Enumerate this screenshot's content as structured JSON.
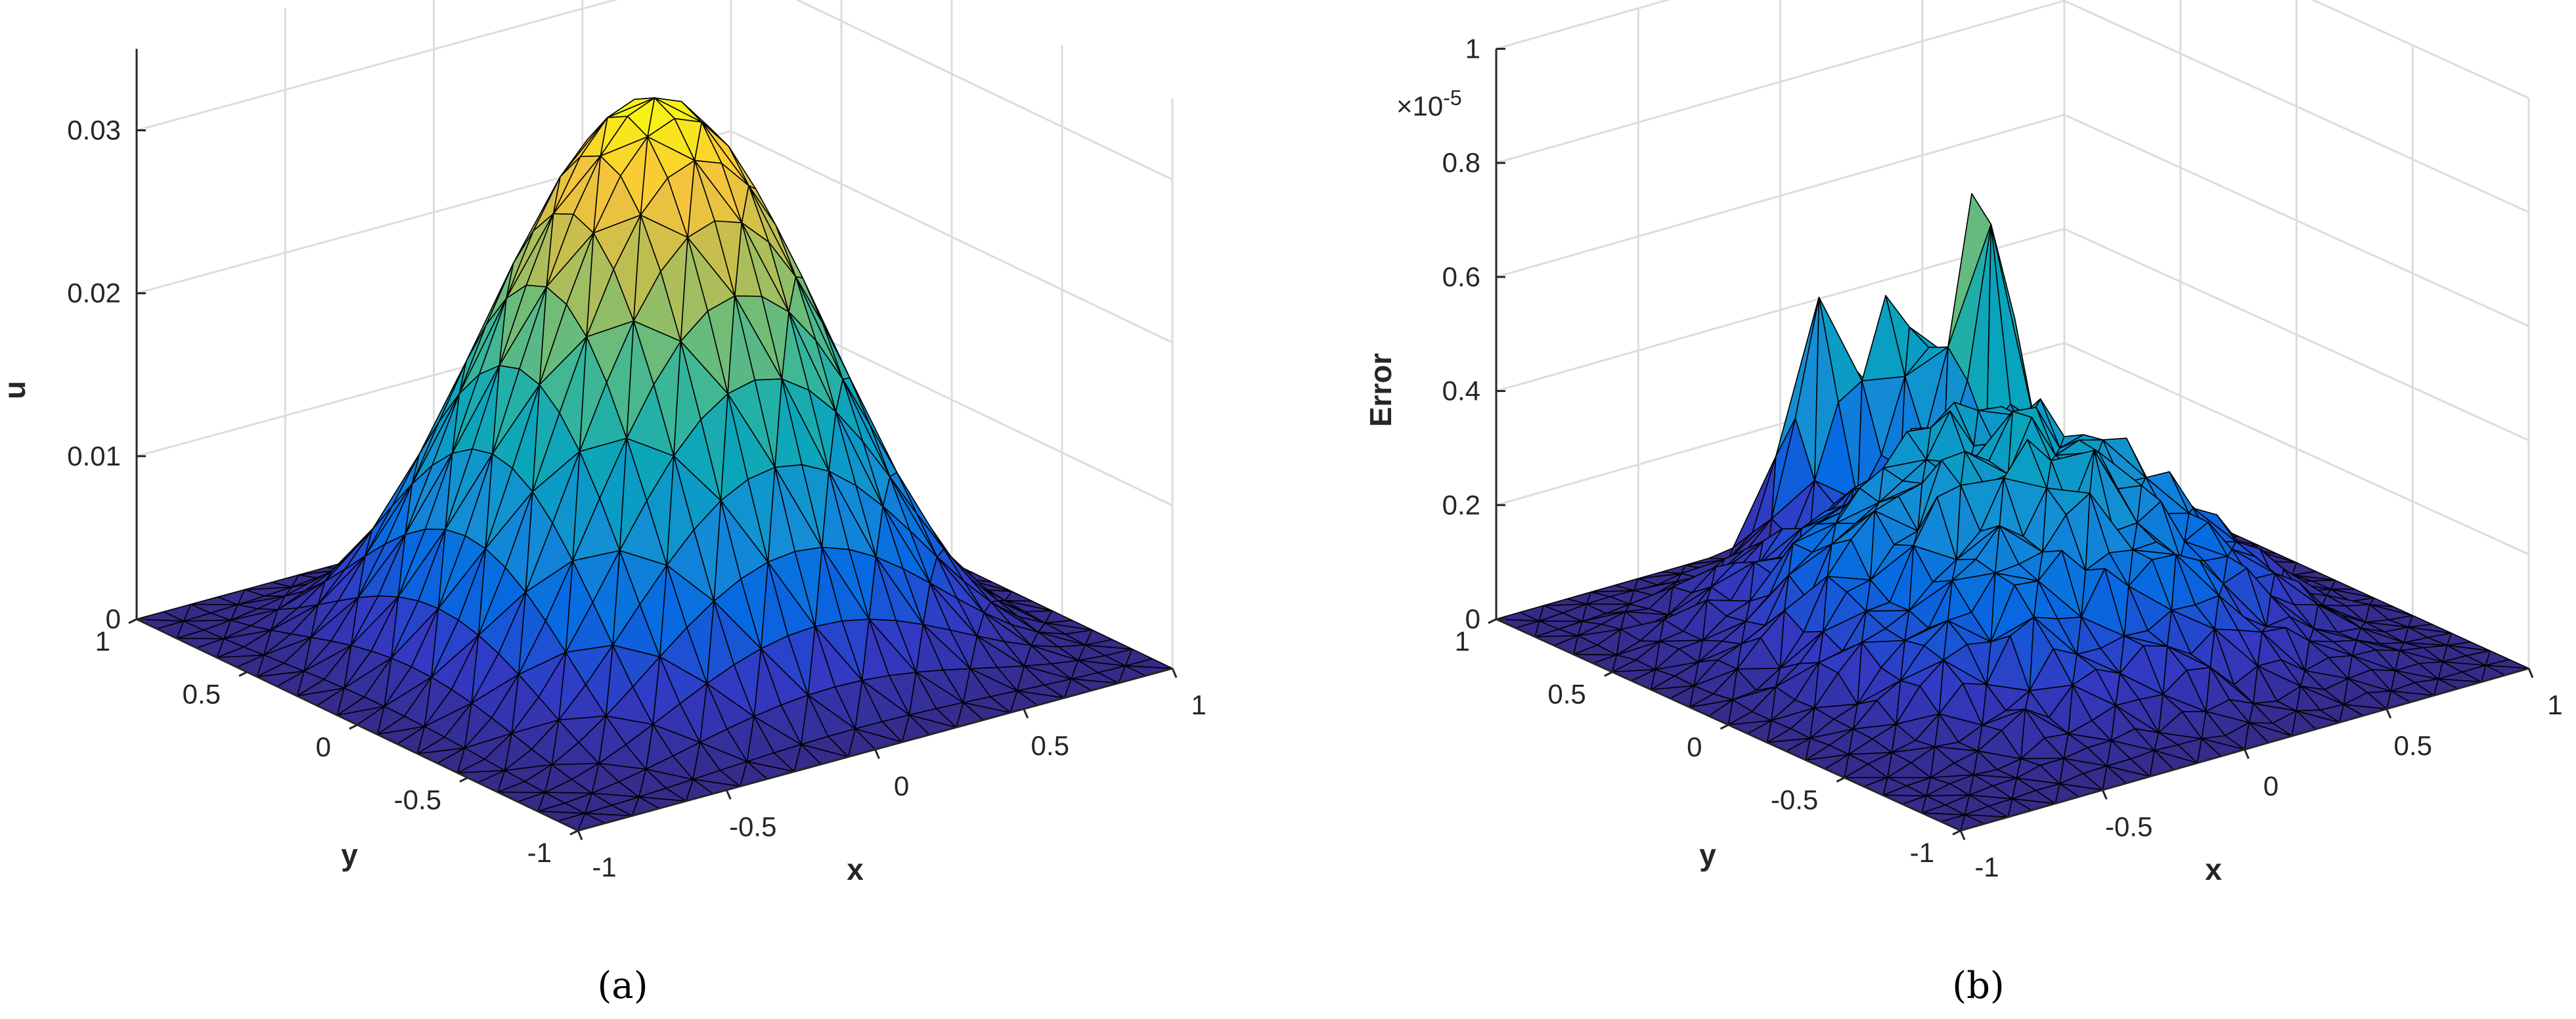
{
  "chart_data": [
    {
      "type": "surface",
      "panel_label": "(a)",
      "xlabel": "x",
      "ylabel": "y",
      "zlabel": "u",
      "xlim": [
        -1,
        1
      ],
      "ylim": [
        -1,
        1
      ],
      "zlim": [
        0,
        0.035
      ],
      "x_ticks": [
        "-1",
        "-0.5",
        "0",
        "0.5",
        "1"
      ],
      "y_ticks": [
        "-1",
        "-0.5",
        "0",
        "0.5",
        "1"
      ],
      "z_ticks": [
        "0",
        "0.01",
        "0.02",
        "0.03"
      ],
      "z_tick_values": [
        0,
        0.01,
        0.02,
        0.03
      ],
      "z_max": 0.0335,
      "grid": true,
      "colormap": "parula",
      "mesh": "triangular",
      "surface_description": "smooth bump peaking at the centre of the square domain"
    },
    {
      "type": "surface",
      "panel_label": "(b)",
      "xlabel": "x",
      "ylabel": "y",
      "zlabel": "Error",
      "z_multiplier": "×10",
      "z_multiplier_exponent": "-5",
      "xlim": [
        -1,
        1
      ],
      "ylim": [
        -1,
        1
      ],
      "zlim": [
        0,
        1
      ],
      "x_ticks": [
        "-1",
        "-0.5",
        "0",
        "0.5",
        "1"
      ],
      "y_ticks": [
        "-1",
        "-0.5",
        "0",
        "0.5",
        "1"
      ],
      "z_ticks": [
        "0",
        "0.2",
        "0.4",
        "0.6",
        "0.8",
        "1"
      ],
      "z_tick_values": [
        0,
        0.2,
        0.4,
        0.6,
        0.8,
        1
      ],
      "z_max": 0.85,
      "peaks": [
        {
          "x": 0.35,
          "y": 0.55,
          "z": 0.85
        },
        {
          "x": 0.0,
          "y": 0.85,
          "z": 0.72
        },
        {
          "x": 0.2,
          "y": 0.75,
          "z": 0.7
        }
      ],
      "grid": true,
      "colormap": "parula",
      "mesh": "triangular"
    }
  ],
  "colors": {
    "background": "#ffffff",
    "axis": "#262626",
    "grid": "#dcdcdc",
    "mesh_edge": "#000000"
  }
}
